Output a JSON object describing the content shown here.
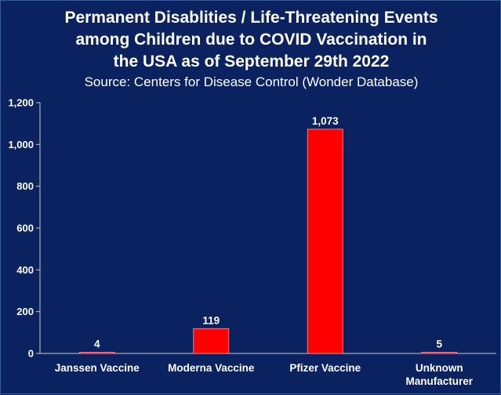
{
  "chart_data": {
    "type": "bar",
    "title_lines": [
      "Permanent Disablities / Life-Threatening Events",
      "among Children due to COVID Vaccination in",
      "the USA as of September 29th 2022"
    ],
    "subtitle": "Source: Centers for Disease Control (Wonder Database)",
    "categories": [
      [
        "Janssen Vaccine"
      ],
      [
        "Moderna Vaccine"
      ],
      [
        "Pfizer Vaccine"
      ],
      [
        "Unknown",
        "Manufacturer"
      ]
    ],
    "values": [
      4,
      119,
      1073,
      5
    ],
    "value_labels": [
      "4",
      "119",
      "1,073",
      "5"
    ],
    "yticks": [
      0,
      200,
      400,
      600,
      800,
      1000,
      1200
    ],
    "ytick_labels": [
      "0",
      "200",
      "400",
      "600",
      "800",
      "1,000",
      "1,200"
    ],
    "ylim": [
      0,
      1200
    ],
    "xlabel": "",
    "ylabel": "",
    "grid": false,
    "legend": "none",
    "colors": {
      "background": "#0b2260",
      "bar_fill": "#ff0000",
      "bar_stroke": "#ff9a9a",
      "axis": "#c8c8c8",
      "text": "#ffffff"
    }
  }
}
